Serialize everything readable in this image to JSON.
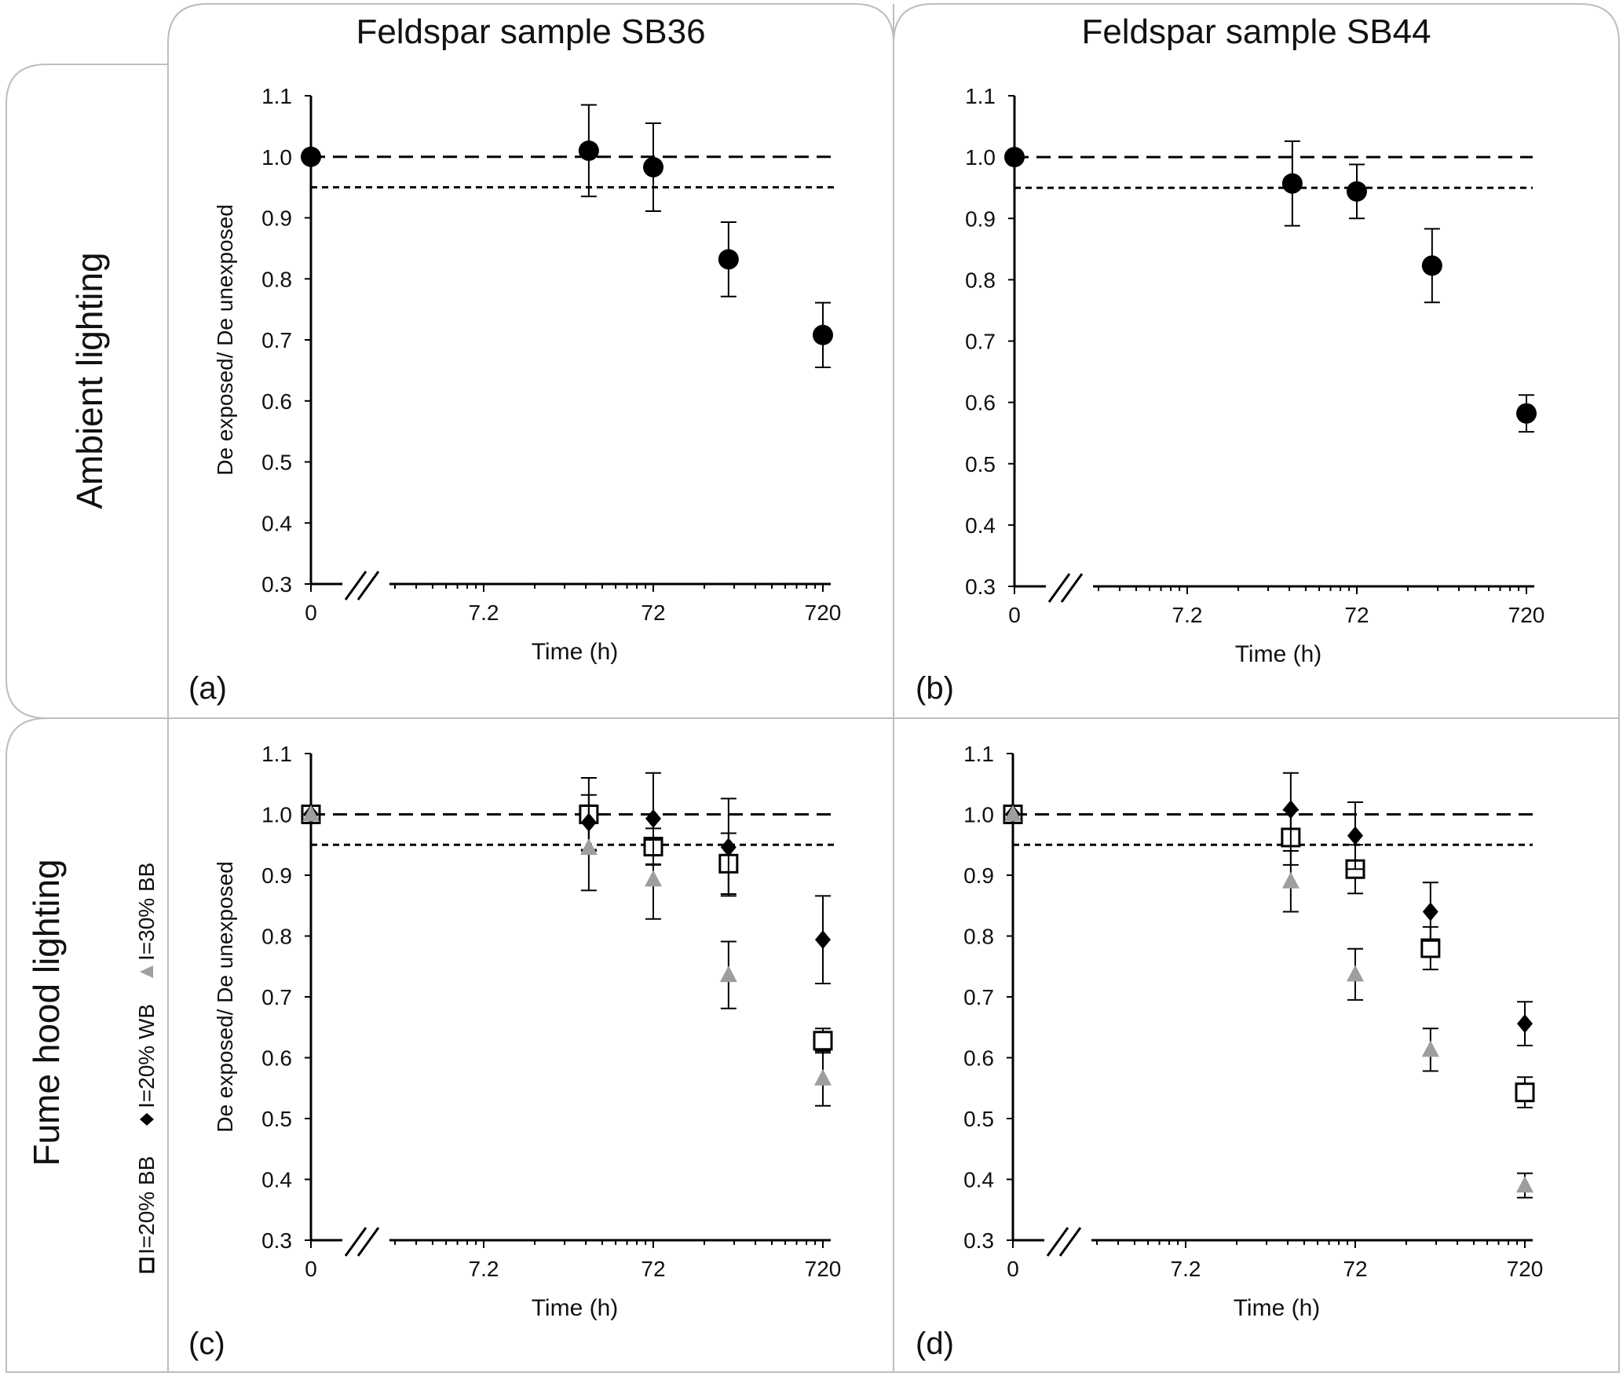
{
  "column_headers": [
    "Feldspar sample SB36",
    "Feldspar sample SB44"
  ],
  "row_headers": [
    "Ambient lighting",
    "Fume hood lighting"
  ],
  "legend": {
    "items": [
      {
        "label": "I=20% BB",
        "marker": "open-square"
      },
      {
        "label": "I=20% WB",
        "marker": "diamond"
      },
      {
        "label": "I=30% BB",
        "marker": "triangle"
      }
    ]
  },
  "colors": {
    "black": "#000000",
    "grey": "#9e9e9e",
    "frame": "#bdbdbd"
  },
  "chart_data": [
    {
      "panel": "(a)",
      "type": "scatter",
      "xlabel": "Time (h)",
      "ylabel": "De exposed/ De unexposed",
      "ylim": [
        0.3,
        1.1
      ],
      "yticks": [
        "0.3",
        "0.4",
        "0.5",
        "0.6",
        "0.7",
        "0.8",
        "0.9",
        "1.0",
        "1.1"
      ],
      "xticks": [
        "0",
        "7.2",
        "72",
        "720"
      ],
      "x_scale": "log (with axis break after 0)",
      "reference_lines": [
        1.0,
        0.95
      ],
      "series": [
        {
          "name": "Ambient",
          "marker": "circle",
          "color": "#000000",
          "points": [
            {
              "x": 0,
              "y": 1.0,
              "err": 0
            },
            {
              "x": 30,
              "y": 1.01,
              "err": 0.075
            },
            {
              "x": 72,
              "y": 0.983,
              "err": 0.072
            },
            {
              "x": 200,
              "y": 0.832,
              "err": 0.061
            },
            {
              "x": 720,
              "y": 0.708,
              "err": 0.053
            }
          ]
        }
      ]
    },
    {
      "panel": "(b)",
      "type": "scatter",
      "xlabel": "Time (h)",
      "ylabel": "",
      "ylim": [
        0.3,
        1.1
      ],
      "yticks": [
        "0.3",
        "0.4",
        "0.5",
        "0.6",
        "0.7",
        "0.8",
        "0.9",
        "1.0",
        "1.1"
      ],
      "xticks": [
        "0",
        "7.2",
        "72",
        "720"
      ],
      "x_scale": "log (with axis break after 0)",
      "reference_lines": [
        1.0,
        0.95
      ],
      "series": [
        {
          "name": "Ambient",
          "marker": "circle",
          "color": "#000000",
          "points": [
            {
              "x": 0,
              "y": 1.0,
              "err": 0
            },
            {
              "x": 30,
              "y": 0.957,
              "err": 0.069
            },
            {
              "x": 72,
              "y": 0.944,
              "err": 0.044
            },
            {
              "x": 200,
              "y": 0.823,
              "err": 0.06
            },
            {
              "x": 720,
              "y": 0.582,
              "err": 0.03
            }
          ]
        }
      ]
    },
    {
      "panel": "(c)",
      "type": "scatter",
      "xlabel": "Time (h)",
      "ylabel": "De exposed/ De unexposed",
      "ylim": [
        0.3,
        1.1
      ],
      "yticks": [
        "0.3",
        "0.4",
        "0.5",
        "0.6",
        "0.7",
        "0.8",
        "0.9",
        "1.0",
        "1.1"
      ],
      "xticks": [
        "0",
        "7.2",
        "72",
        "720"
      ],
      "x_scale": "log (with axis break after 0)",
      "reference_lines": [
        1.0,
        0.95
      ],
      "series": [
        {
          "name": "I=20% BB",
          "marker": "open-square",
          "color": "#000000",
          "points": [
            {
              "x": 0,
              "y": 1.0,
              "err": 0
            },
            {
              "x": 30,
              "y": 1.0,
              "err": 0.06
            },
            {
              "x": 72,
              "y": 0.947,
              "err": 0.03
            },
            {
              "x": 200,
              "y": 0.919,
              "err": 0.05
            },
            {
              "x": 720,
              "y": 0.628,
              "err": 0.02
            }
          ]
        },
        {
          "name": "I=20% WB",
          "marker": "diamond",
          "color": "#000000",
          "points": [
            {
              "x": 0,
              "y": 1.0,
              "err": 0
            },
            {
              "x": 30,
              "y": 0.987,
              "err": 0.045
            },
            {
              "x": 72,
              "y": 0.993,
              "err": 0.075
            },
            {
              "x": 200,
              "y": 0.946,
              "err": 0.08
            },
            {
              "x": 720,
              "y": 0.794,
              "err": 0.072
            }
          ]
        },
        {
          "name": "I=30% BB",
          "marker": "triangle",
          "color": "#9e9e9e",
          "points": [
            {
              "x": 0,
              "y": 1.0,
              "err": 0
            },
            {
              "x": 30,
              "y": 0.945,
              "err": 0.07
            },
            {
              "x": 72,
              "y": 0.893,
              "err": 0.065
            },
            {
              "x": 200,
              "y": 0.736,
              "err": 0.055
            },
            {
              "x": 720,
              "y": 0.566,
              "err": 0.045
            }
          ]
        }
      ]
    },
    {
      "panel": "(d)",
      "type": "scatter",
      "xlabel": "Time (h)",
      "ylabel": "",
      "ylim": [
        0.3,
        1.1
      ],
      "yticks": [
        "0.3",
        "0.4",
        "0.5",
        "0.6",
        "0.7",
        "0.8",
        "0.9",
        "1.0",
        "1.1"
      ],
      "xticks": [
        "0",
        "7.2",
        "72",
        "720"
      ],
      "x_scale": "log (with axis break after 0)",
      "reference_lines": [
        1.0,
        0.95
      ],
      "series": [
        {
          "name": "I=20% BB",
          "marker": "open-square",
          "color": "#000000",
          "points": [
            {
              "x": 0,
              "y": 1.0,
              "err": 0
            },
            {
              "x": 30,
              "y": 0.962,
              "err": 0.045
            },
            {
              "x": 72,
              "y": 0.91,
              "err": 0.04
            },
            {
              "x": 200,
              "y": 0.78,
              "err": 0.035
            },
            {
              "x": 720,
              "y": 0.543,
              "err": 0.025
            }
          ]
        },
        {
          "name": "I=20% WB",
          "marker": "diamond",
          "color": "#000000",
          "points": [
            {
              "x": 0,
              "y": 1.0,
              "err": 0
            },
            {
              "x": 30,
              "y": 1.008,
              "err": 0.06
            },
            {
              "x": 72,
              "y": 0.965,
              "err": 0.055
            },
            {
              "x": 200,
              "y": 0.84,
              "err": 0.048
            },
            {
              "x": 720,
              "y": 0.656,
              "err": 0.036
            }
          ]
        },
        {
          "name": "I=30% BB",
          "marker": "triangle",
          "color": "#9e9e9e",
          "points": [
            {
              "x": 0,
              "y": 1.0,
              "err": 0
            },
            {
              "x": 30,
              "y": 0.89,
              "err": 0.05
            },
            {
              "x": 72,
              "y": 0.737,
              "err": 0.042
            },
            {
              "x": 200,
              "y": 0.613,
              "err": 0.035
            },
            {
              "x": 720,
              "y": 0.39,
              "err": 0.02
            }
          ]
        }
      ]
    }
  ]
}
